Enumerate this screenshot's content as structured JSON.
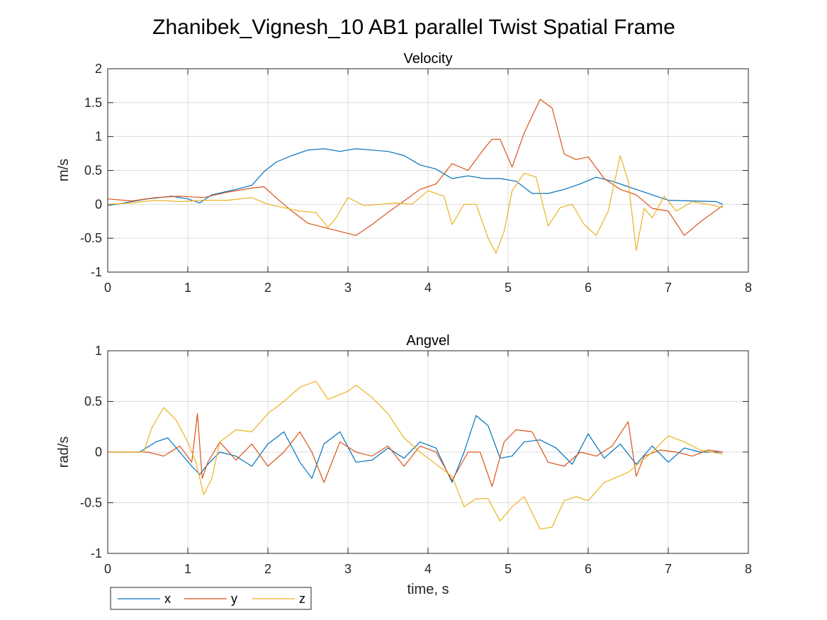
{
  "colors": {
    "x": "#0072BD",
    "y": "#D95319",
    "z": "#EDB120",
    "grid": "#dcdcdc",
    "axis": "#262626"
  },
  "chart_data": {
    "type": "line",
    "title": "Zhanibek_Vignesh_10 AB1 parallel Twist Spatial Frame",
    "legend": {
      "position": "bottom-left",
      "entries": [
        "x",
        "y",
        "z"
      ]
    },
    "panels": [
      {
        "title": "Velocity",
        "ylabel": "m/s",
        "xlabel": "",
        "xlim": [
          0,
          8
        ],
        "ylim": [
          -1,
          2
        ],
        "xticks": [
          "0",
          "1",
          "2",
          "3",
          "4",
          "5",
          "6",
          "7",
          "8"
        ],
        "yticks": [
          "-1",
          "-0.5",
          "0",
          "0.5",
          "1",
          "1.5",
          "2"
        ],
        "grid": true,
        "series": [
          {
            "name": "x",
            "x": [
              0,
              0.5,
              0.8,
              1.0,
              1.15,
              1.3,
              1.6,
              1.8,
              1.95,
              2.1,
              2.3,
              2.5,
              2.7,
              2.9,
              3.1,
              3.3,
              3.5,
              3.7,
              3.9,
              4.1,
              4.3,
              4.5,
              4.7,
              4.9,
              5.1,
              5.3,
              5.5,
              5.7,
              5.9,
              6.1,
              6.3,
              6.5,
              6.8,
              7.0,
              7.3,
              7.6,
              7.68
            ],
            "y": [
              -0.02,
              0.08,
              0.12,
              0.08,
              0.02,
              0.14,
              0.22,
              0.28,
              0.48,
              0.62,
              0.72,
              0.8,
              0.82,
              0.78,
              0.82,
              0.8,
              0.78,
              0.72,
              0.58,
              0.52,
              0.38,
              0.42,
              0.38,
              0.38,
              0.34,
              0.16,
              0.16,
              0.22,
              0.3,
              0.4,
              0.34,
              0.26,
              0.14,
              0.06,
              0.05,
              0.04,
              0.0
            ]
          },
          {
            "name": "y",
            "x": [
              0,
              0.3,
              0.6,
              0.9,
              1.2,
              1.5,
              1.8,
              1.95,
              2.1,
              2.3,
              2.5,
              2.7,
              2.9,
              3.1,
              3.3,
              3.5,
              3.7,
              3.9,
              4.1,
              4.3,
              4.5,
              4.7,
              4.8,
              4.9,
              5.05,
              5.2,
              5.4,
              5.55,
              5.7,
              5.85,
              6.0,
              6.2,
              6.4,
              6.6,
              6.8,
              7.0,
              7.2,
              7.4,
              7.68
            ],
            "y": [
              0.08,
              0.05,
              0.1,
              0.12,
              0.1,
              0.18,
              0.24,
              0.26,
              0.1,
              -0.1,
              -0.28,
              -0.34,
              -0.4,
              -0.46,
              -0.3,
              -0.12,
              0.05,
              0.22,
              0.3,
              0.6,
              0.5,
              0.82,
              0.96,
              0.96,
              0.55,
              1.05,
              1.55,
              1.42,
              0.74,
              0.66,
              0.7,
              0.38,
              0.22,
              0.14,
              -0.06,
              -0.1,
              -0.46,
              -0.26,
              -0.02
            ]
          },
          {
            "name": "z",
            "x": [
              0,
              0.3,
              0.6,
              0.9,
              1.2,
              1.5,
              1.8,
              2.0,
              2.2,
              2.4,
              2.6,
              2.75,
              2.85,
              3.0,
              3.2,
              3.4,
              3.6,
              3.8,
              4.0,
              4.2,
              4.3,
              4.45,
              4.6,
              4.75,
              4.85,
              4.95,
              5.05,
              5.2,
              5.35,
              5.5,
              5.65,
              5.8,
              5.95,
              6.1,
              6.25,
              6.4,
              6.5,
              6.6,
              6.7,
              6.8,
              6.95,
              7.1,
              7.3,
              7.5,
              7.68
            ],
            "y": [
              0.0,
              0.02,
              0.06,
              0.04,
              0.06,
              0.06,
              0.1,
              0.0,
              -0.05,
              -0.1,
              -0.12,
              -0.34,
              -0.2,
              0.1,
              -0.02,
              0.0,
              0.02,
              0.0,
              0.2,
              0.12,
              -0.3,
              0.0,
              0.0,
              -0.5,
              -0.72,
              -0.4,
              0.2,
              0.46,
              0.4,
              -0.32,
              -0.05,
              0.0,
              -0.3,
              -0.46,
              -0.1,
              0.72,
              0.34,
              -0.68,
              -0.06,
              -0.2,
              0.12,
              -0.1,
              0.04,
              0.0,
              -0.05
            ]
          }
        ]
      },
      {
        "title": "Angvel",
        "ylabel": "rad/s",
        "xlabel": "time, s",
        "xlim": [
          0,
          8
        ],
        "ylim": [
          -1,
          1
        ],
        "xticks": [
          "0",
          "1",
          "2",
          "3",
          "4",
          "5",
          "6",
          "7",
          "8"
        ],
        "yticks": [
          "-1",
          "-0.5",
          "0",
          "0.5",
          "1"
        ],
        "grid": true,
        "series": [
          {
            "name": "x",
            "x": [
              0,
              0.4,
              0.6,
              0.75,
              0.9,
              1.05,
              1.15,
              1.25,
              1.4,
              1.6,
              1.8,
              2.0,
              2.2,
              2.4,
              2.55,
              2.7,
              2.9,
              3.1,
              3.3,
              3.5,
              3.7,
              3.9,
              4.1,
              4.3,
              4.45,
              4.6,
              4.75,
              4.9,
              5.05,
              5.2,
              5.4,
              5.6,
              5.8,
              6.0,
              6.2,
              6.4,
              6.6,
              6.8,
              7.0,
              7.2,
              7.4,
              7.68
            ],
            "y": [
              0.0,
              0.0,
              0.1,
              0.14,
              0.0,
              -0.14,
              -0.22,
              -0.12,
              0.0,
              -0.04,
              -0.14,
              0.08,
              0.2,
              -0.1,
              -0.26,
              0.08,
              0.2,
              -0.1,
              -0.08,
              0.04,
              -0.06,
              0.1,
              0.04,
              -0.3,
              0.0,
              0.36,
              0.26,
              -0.06,
              -0.04,
              0.1,
              0.12,
              0.04,
              -0.12,
              0.18,
              -0.06,
              0.08,
              -0.12,
              0.06,
              -0.1,
              0.04,
              0.0,
              0.0
            ]
          },
          {
            "name": "y",
            "x": [
              0,
              0.5,
              0.7,
              0.9,
              1.05,
              1.12,
              1.18,
              1.25,
              1.4,
              1.6,
              1.8,
              2.0,
              2.2,
              2.4,
              2.55,
              2.7,
              2.9,
              3.1,
              3.3,
              3.5,
              3.7,
              3.9,
              4.1,
              4.3,
              4.5,
              4.65,
              4.8,
              4.95,
              5.1,
              5.3,
              5.5,
              5.7,
              5.9,
              6.1,
              6.3,
              6.5,
              6.6,
              6.7,
              6.9,
              7.1,
              7.3,
              7.5,
              7.68
            ],
            "y": [
              0.0,
              0.0,
              -0.04,
              0.06,
              -0.1,
              0.38,
              -0.26,
              -0.1,
              0.1,
              -0.08,
              0.08,
              -0.14,
              0.0,
              0.2,
              0.0,
              -0.3,
              0.1,
              0.0,
              -0.04,
              0.06,
              -0.14,
              0.06,
              0.0,
              -0.28,
              0.0,
              0.0,
              -0.34,
              0.1,
              0.22,
              0.2,
              -0.1,
              -0.14,
              0.0,
              -0.04,
              0.06,
              0.3,
              -0.24,
              -0.04,
              0.02,
              0.0,
              -0.04,
              0.02,
              0.0
            ]
          },
          {
            "name": "z",
            "x": [
              0,
              0.45,
              0.55,
              0.7,
              0.85,
              1.0,
              1.1,
              1.2,
              1.3,
              1.4,
              1.6,
              1.8,
              2.0,
              2.2,
              2.4,
              2.6,
              2.75,
              3.0,
              3.1,
              3.3,
              3.5,
              3.7,
              3.9,
              4.1,
              4.3,
              4.45,
              4.6,
              4.75,
              4.9,
              5.05,
              5.2,
              5.4,
              5.55,
              5.7,
              5.85,
              6.0,
              6.2,
              6.5,
              6.8,
              7.0,
              7.2,
              7.4,
              7.68
            ],
            "y": [
              0.0,
              0.0,
              0.24,
              0.44,
              0.32,
              0.1,
              -0.1,
              -0.42,
              -0.26,
              0.1,
              0.22,
              0.2,
              0.38,
              0.5,
              0.64,
              0.7,
              0.52,
              0.6,
              0.66,
              0.54,
              0.38,
              0.14,
              0.0,
              -0.12,
              -0.24,
              -0.54,
              -0.46,
              -0.46,
              -0.68,
              -0.54,
              -0.44,
              -0.76,
              -0.74,
              -0.48,
              -0.44,
              -0.48,
              -0.3,
              -0.2,
              0.0,
              0.16,
              0.1,
              0.02,
              -0.02
            ]
          }
        ]
      }
    ]
  }
}
